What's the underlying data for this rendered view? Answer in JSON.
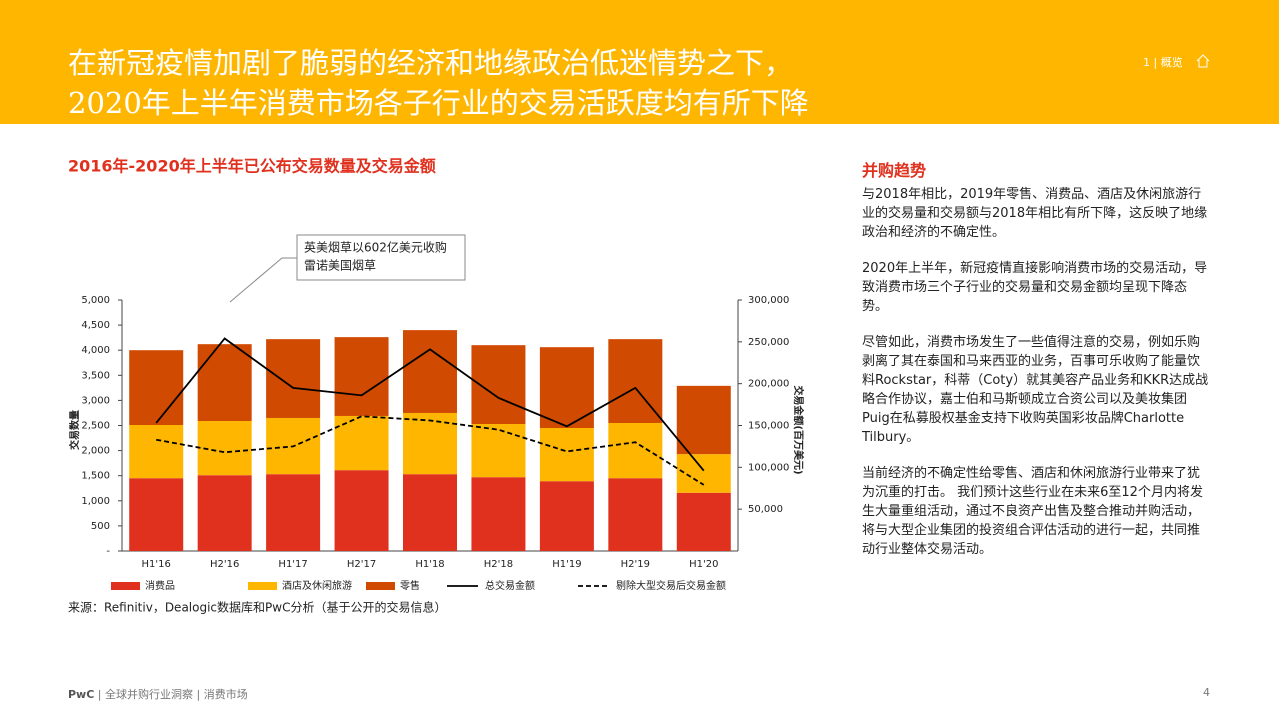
{
  "header": {
    "title_lines": [
      "在新冠疫情加剧了脆弱的经济和地缘政治低迷情势之下，",
      "2020年上半年消费市场各子行业的交易活跃度均有所下降"
    ],
    "section": "1 | 概览"
  },
  "chart_data": {
    "type": "bar",
    "stacked": true,
    "title": "2016年-2020年上半年已公布交易数量及交易金额",
    "categories": [
      "H1'16",
      "H2'16",
      "H1'17",
      "H2'17",
      "H1'18",
      "H2'18",
      "H1'19",
      "H2'19",
      "H1'20"
    ],
    "series": [
      {
        "name": "消费品",
        "type": "bar",
        "color": "#e0301e",
        "values": [
          1450,
          1510,
          1530,
          1610,
          1530,
          1470,
          1390,
          1450,
          1160
        ]
      },
      {
        "name": "酒店及休闲旅游",
        "type": "bar",
        "color": "#ffb600",
        "values": [
          1060,
          1080,
          1120,
          1080,
          1220,
          1060,
          1060,
          1100,
          770
        ]
      },
      {
        "name": "零售",
        "type": "bar",
        "color": "#d04a02",
        "values": [
          1490,
          1530,
          1570,
          1570,
          1650,
          1570,
          1610,
          1670,
          1360
        ]
      },
      {
        "name": "总交易金额",
        "type": "line",
        "axis": "y2",
        "color": "#000000",
        "dash": false,
        "values": [
          153000,
          254000,
          195000,
          186000,
          241000,
          183000,
          149000,
          195000,
          96000
        ]
      },
      {
        "name": "剔除大型交易后交易金额",
        "type": "line",
        "axis": "y2",
        "color": "#000000",
        "dash": true,
        "values": [
          133000,
          118000,
          125000,
          161000,
          156000,
          145000,
          119000,
          130000,
          79000
        ]
      }
    ],
    "ylim": [
      0,
      5000
    ],
    "yticks": [
      {
        "value": 0,
        "label": "-"
      },
      500,
      {
        "value": 1000,
        "label": "1,000"
      },
      {
        "value": 1500,
        "label": "1,500"
      },
      {
        "value": 2000,
        "label": "2,000"
      },
      {
        "value": 2500,
        "label": "2,500"
      },
      {
        "value": 3000,
        "label": "3,000"
      },
      {
        "value": 3500,
        "label": "3,500"
      },
      {
        "value": 4000,
        "label": "4,000"
      },
      {
        "value": 4500,
        "label": "4,500"
      },
      {
        "value": 5000,
        "label": "5,000"
      }
    ],
    "y2lim": [
      0,
      300000
    ],
    "y2ticks": [
      {
        "value": 50000,
        "label": "50,000"
      },
      {
        "value": 100000,
        "label": "100,000"
      },
      {
        "value": 150000,
        "label": "150,000"
      },
      {
        "value": 200000,
        "label": "200,000"
      },
      {
        "value": 250000,
        "label": "250,000"
      },
      {
        "value": 300000,
        "label": "300,000"
      }
    ],
    "ylabel": "交易数量",
    "y2label": "交易金额(百万美元)",
    "annotation": [
      "英美烟草以602亿美元收购",
      "雷诺美国烟草"
    ],
    "source": "来源：Refinitiv，Dealogic数据库和PwC分析（基于公开的交易信息）"
  },
  "sidebar": {
    "heading": "并购趋势",
    "paragraphs": [
      "与2018年相比，2019年零售、消费品、酒店及休闲旅游行业的交易量和交易额与2018年相比有所下降，这反映了地缘政治和经济的不确定性。",
      "2020年上半年，新冠疫情直接影响消费市场的交易活动，导致消费市场三个子行业的交易量和交易金额均呈现下降态势。",
      "尽管如此，消费市场发生了一些值得注意的交易，例如乐购剥离了其在泰国和马来西亚的业务，百事可乐收购了能量饮料Rockstar，科蒂（Coty）就其美容产品业务和KKR达成战略合作协议，嘉士伯和马斯顿成立合资公司以及美妆集团Puig在私募股权基金支持下收购英国彩妆品牌Charlotte Tilbury。",
      "当前经济的不确定性给零售、酒店和休闲旅游行业带来了犹为沉重的打击。 我们预计这些行业在未来6至12个月内将发生大量重组活动，通过不良资产出售及整合推动并购活动，将与大型企业集团的投资组合评估活动的进行一起，共同推动行业整体交易活动。"
    ]
  },
  "footer": {
    "brand": "PwC",
    "breadcrumb": "| 全球并购行业洞察 | 消费市场",
    "page": "4"
  }
}
